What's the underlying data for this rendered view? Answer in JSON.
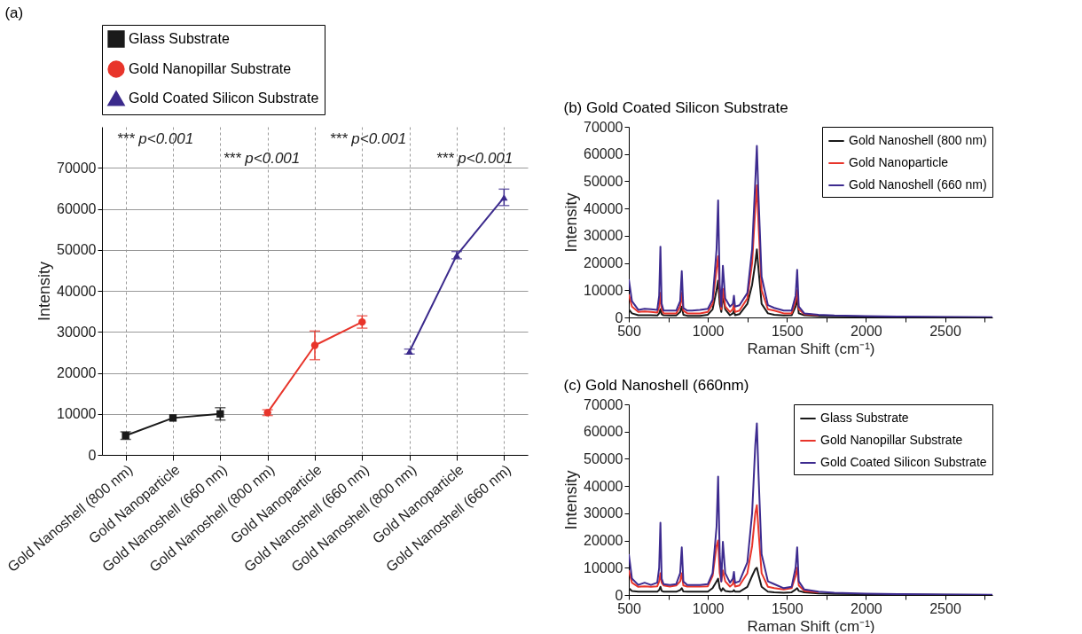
{
  "chart_data": [
    {
      "type": "line",
      "title": "(a)",
      "ylabel": "Intensity",
      "categories": [
        "Gold Nanoshell (800 nm)",
        "Gold Nanoparticle",
        "Gold Nanoshell (660 nm)",
        "Gold Nanoshell (800 nm)",
        "Gold Nanoparticle",
        "Gold Nanoshell (660 nm)",
        "Gold Nanoshell (800 nm)",
        "Gold Nanoparticle",
        "Gold Nanoshell (660 nm)"
      ],
      "series": [
        {
          "name": "Glass Substrate",
          "color": "#1a1a1a",
          "marker": "square",
          "values": [
            4700,
            9000,
            10000,
            null,
            null,
            null,
            null,
            null,
            null
          ],
          "errors": [
            900,
            null,
            1500,
            null,
            null,
            null,
            null,
            null,
            null
          ]
        },
        {
          "name": "Gold Nanopillar Substrate",
          "color": "#e8352b",
          "marker": "circle",
          "values": [
            null,
            null,
            null,
            10300,
            26700,
            32400,
            null,
            null,
            null
          ],
          "errors": [
            null,
            null,
            null,
            700,
            3500,
            1500,
            null,
            null,
            null
          ]
        },
        {
          "name": "Gold Coated Silicon Substrate",
          "color": "#3b2a8c",
          "marker": "triangle",
          "values": [
            null,
            null,
            null,
            null,
            null,
            null,
            25200,
            48700,
            62800
          ],
          "errors": [
            null,
            null,
            null,
            null,
            null,
            null,
            600,
            900,
            2000
          ]
        }
      ],
      "ylim": [
        0,
        80000
      ],
      "yticks": [
        0,
        10000,
        20000,
        30000,
        40000,
        50000,
        60000,
        70000
      ],
      "grid": true,
      "legend": "top",
      "annotations": [
        "*** p<0.001",
        "*** p<0.001",
        "*** p<0.001",
        "*** p<0.001"
      ]
    },
    {
      "type": "line",
      "title": "(b) Gold Coated Silicon Substrate",
      "xlabel": "Raman Shift (cm⁻¹)",
      "ylabel": "Intensity",
      "x": [
        500,
        520,
        560,
        600,
        640,
        680,
        692,
        700,
        708,
        720,
        760,
        800,
        825,
        835,
        845,
        870,
        900,
        950,
        1000,
        1030,
        1055,
        1065,
        1075,
        1085,
        1095,
        1110,
        1140,
        1158,
        1165,
        1172,
        1200,
        1250,
        1280,
        1300,
        1310,
        1320,
        1340,
        1380,
        1420,
        1480,
        1530,
        1555,
        1565,
        1575,
        1610,
        1700,
        1800,
        2000,
        2200,
        2500,
        2800
      ],
      "series": [
        {
          "name": "Gold Nanoshell (800 nm)",
          "color": "#1a1a1a",
          "values": [
            3000,
            1500,
            800,
            800,
            800,
            700,
            1500,
            3000,
            1200,
            800,
            700,
            700,
            2000,
            4000,
            1000,
            600,
            600,
            600,
            1000,
            3000,
            10000,
            13500,
            5000,
            2000,
            8000,
            3000,
            800,
            1500,
            2500,
            800,
            1200,
            5000,
            12000,
            20000,
            25000,
            18000,
            5000,
            1500,
            1000,
            700,
            800,
            4000,
            7000,
            1500,
            800,
            500,
            400,
            300,
            200,
            100,
            0
          ]
        },
        {
          "name": "Gold Nanoparticle",
          "color": "#e8352b",
          "values": [
            8500,
            4000,
            2000,
            2200,
            2000,
            1800,
            4000,
            9000,
            3000,
            1500,
            1500,
            1500,
            4000,
            9000,
            2500,
            1500,
            1500,
            1500,
            2000,
            5000,
            18000,
            22500,
            9000,
            3000,
            10500,
            4000,
            2000,
            3000,
            5000,
            2000,
            2500,
            7000,
            20000,
            40000,
            48500,
            35000,
            10000,
            3000,
            2500,
            1500,
            1500,
            6000,
            10000,
            3000,
            1200,
            800,
            null,
            null,
            null,
            null,
            null
          ]
        },
        {
          "name": "Gold Nanoshell (660 nm)",
          "color": "#3d2b8f",
          "values": [
            14000,
            6000,
            2800,
            3200,
            3000,
            2800,
            8000,
            26000,
            5000,
            2500,
            2500,
            2500,
            6000,
            17000,
            3500,
            2500,
            2500,
            2800,
            3200,
            6500,
            25000,
            43000,
            12000,
            4000,
            19000,
            7000,
            4000,
            5000,
            8000,
            4000,
            4500,
            9000,
            25000,
            50000,
            63000,
            45000,
            15000,
            4500,
            3500,
            2500,
            2500,
            8000,
            17500,
            4000,
            1500,
            1000,
            700,
            500,
            300,
            200,
            100
          ]
        }
      ],
      "xlim": [
        500,
        2800
      ],
      "xticks": [
        500,
        {
          "value": 750,
          "label": null
        },
        1000,
        {
          "value": 1250,
          "label": null
        },
        1500,
        {
          "value": 1750,
          "label": null
        },
        2000,
        {
          "value": 2250,
          "label": null
        },
        2500,
        {
          "value": 2750,
          "label": null
        }
      ],
      "ylim": [
        0,
        70000
      ],
      "yticks": [
        0,
        10000,
        20000,
        30000,
        40000,
        50000,
        60000,
        70000
      ],
      "legend": "top right"
    },
    {
      "type": "line",
      "title": "(c) Gold Nanoshell (660nm)",
      "xlabel": "Raman Shift (cm⁻¹)",
      "ylabel": "Intensity",
      "x": [
        500,
        520,
        560,
        600,
        640,
        680,
        692,
        700,
        708,
        720,
        760,
        800,
        825,
        835,
        845,
        870,
        900,
        950,
        1000,
        1030,
        1055,
        1065,
        1075,
        1085,
        1095,
        1110,
        1140,
        1158,
        1165,
        1172,
        1200,
        1250,
        1280,
        1300,
        1310,
        1320,
        1340,
        1380,
        1420,
        1480,
        1530,
        1555,
        1565,
        1575,
        1610,
        1700,
        1800,
        2000,
        2200,
        2500,
        2800
      ],
      "series": [
        {
          "name": "Glass Substrate",
          "color": "#1a1a1a",
          "values": [
            2500,
            1500,
            1200,
            1200,
            1200,
            1200,
            1800,
            3000,
            1500,
            1200,
            1200,
            1200,
            1800,
            2500,
            1300,
            1200,
            1200,
            1200,
            1200,
            2500,
            5000,
            6000,
            2500,
            1500,
            2500,
            1500,
            1200,
            1300,
            1800,
            1200,
            1200,
            3000,
            7000,
            9500,
            10000,
            7500,
            3000,
            1200,
            1000,
            800,
            1000,
            2000,
            2500,
            1500,
            1000,
            600,
            400,
            300,
            200,
            100,
            0
          ]
        },
        {
          "name": "Gold Nanopillar Substrate",
          "color": "#e8352b",
          "values": [
            9000,
            4500,
            3000,
            3200,
            3000,
            3200,
            5000,
            8000,
            4500,
            3500,
            3100,
            3500,
            5000,
            8000,
            3500,
            3100,
            3100,
            3100,
            3200,
            7000,
            18000,
            20000,
            8000,
            5000,
            9000,
            5000,
            3100,
            4000,
            6000,
            3100,
            3500,
            8000,
            18000,
            30000,
            33000,
            24000,
            8000,
            3000,
            2500,
            2000,
            2500,
            7000,
            10000,
            3500,
            1500,
            1000,
            null,
            null,
            null,
            null,
            null
          ]
        },
        {
          "name": "Gold Coated Silicon Substrate",
          "color": "#3d2b8f",
          "values": [
            15000,
            6000,
            3700,
            4500,
            3700,
            4500,
            10000,
            26500,
            6000,
            4000,
            3700,
            4000,
            8000,
            17500,
            5000,
            3700,
            3700,
            3700,
            4000,
            8000,
            25000,
            43500,
            15000,
            5000,
            19500,
            8000,
            4500,
            6000,
            8500,
            4500,
            5000,
            12000,
            30000,
            55000,
            63000,
            45000,
            15000,
            5000,
            4000,
            2500,
            3000,
            10000,
            17500,
            5000,
            2000,
            1200,
            800,
            500,
            300,
            200,
            100
          ]
        }
      ],
      "xlim": [
        500,
        2800
      ],
      "xticks": [
        500,
        {
          "value": 750,
          "label": null
        },
        1000,
        {
          "value": 1250,
          "label": null
        },
        1500,
        {
          "value": 1750,
          "label": null
        },
        2000,
        {
          "value": 2250,
          "label": null
        },
        2500,
        {
          "value": 2750,
          "label": null
        }
      ],
      "ylim": [
        0,
        70000
      ],
      "yticks": [
        0,
        10000,
        20000,
        30000,
        40000,
        50000,
        60000,
        70000
      ],
      "legend": "top right"
    }
  ]
}
